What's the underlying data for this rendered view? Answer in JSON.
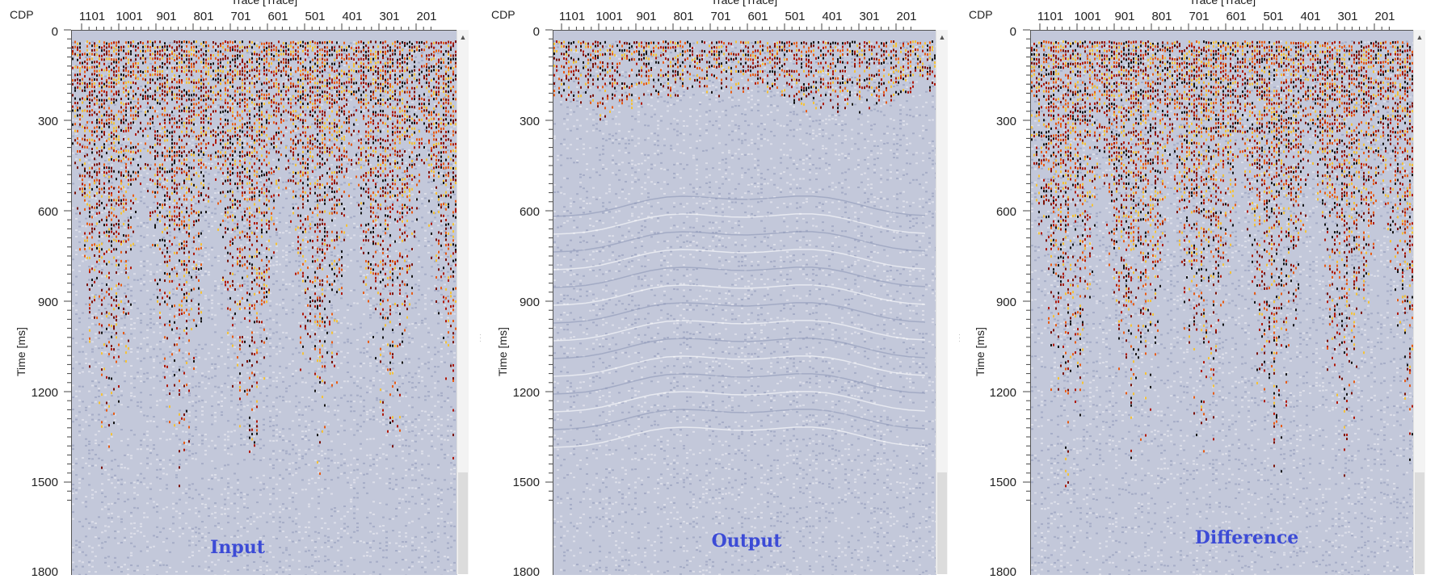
{
  "colors": {
    "background_gray": "#c3c8da",
    "neutral_blue_gray": "#8e97b8",
    "positive_red": "#b01808",
    "positive_orange": "#e85b14",
    "positive_yellow": "#f5c236",
    "negative_black": "#141414",
    "caption_blue": "#3c4bd6"
  },
  "panels": [
    {
      "caption": "Input",
      "cdp_label": "CDP",
      "x_axis_title": "Trace [Trace]",
      "y_axis_title": "Time [ms]",
      "x_tick_labels": [
        "1101",
        "1001",
        "901",
        "801",
        "701",
        "601",
        "501",
        "401",
        "301",
        "201"
      ],
      "y_tick_labels": [
        "0",
        "300",
        "600",
        "900",
        "1200",
        "1500",
        "1800"
      ],
      "y_ticks_ms": [
        0,
        300,
        600,
        900,
        1200,
        1500,
        1800
      ]
    },
    {
      "caption": "Output",
      "cdp_label": "CDP",
      "x_axis_title": "Trace [Trace]",
      "y_axis_title": "Time [ms]",
      "x_tick_labels": [
        "1101",
        "1001",
        "901",
        "801",
        "701",
        "601",
        "501",
        "401",
        "301",
        "201"
      ],
      "y_tick_labels": [
        "0",
        "300",
        "600",
        "900",
        "1200",
        "1500",
        "1800"
      ],
      "y_ticks_ms": [
        0,
        300,
        600,
        900,
        1200,
        1500,
        1800
      ]
    },
    {
      "caption": "Difference",
      "cdp_label": "CDP",
      "x_axis_title": "Trace [Trace]",
      "y_axis_title": "Time [ms]",
      "x_tick_labels": [
        "1101",
        "1001",
        "901",
        "801",
        "701",
        "601",
        "501",
        "401",
        "301",
        "201"
      ],
      "y_tick_labels": [
        "0",
        "300",
        "600",
        "900",
        "1200",
        "1500",
        "1800"
      ],
      "y_ticks_ms": [
        0,
        300,
        600,
        900,
        1200,
        1500,
        1800
      ]
    }
  ]
}
